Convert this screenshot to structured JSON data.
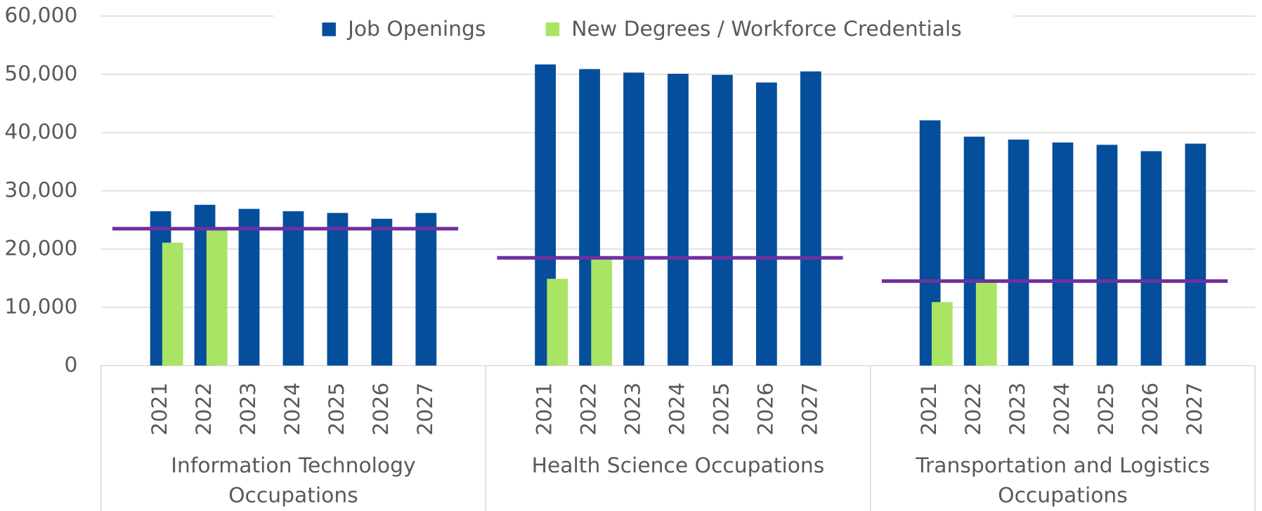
{
  "chart_data": {
    "type": "bar",
    "groups": [
      {
        "label": "Information Technology Occupations",
        "categories": [
          "2021",
          "2022",
          "2023",
          "2024",
          "2025",
          "2026",
          "2027"
        ]
      },
      {
        "label": "Health Science Occupations",
        "categories": [
          "2021",
          "2022",
          "2023",
          "2024",
          "2025",
          "2026",
          "2027"
        ]
      },
      {
        "label": "Transportation and Logistics Occupations",
        "categories": [
          "2021",
          "2022",
          "2023",
          "2024",
          "2025",
          "2026",
          "2027"
        ]
      }
    ],
    "series": [
      {
        "name": "Job Openings",
        "color": "#044e9c",
        "values": [
          26500,
          27600,
          26900,
          26500,
          26200,
          25200,
          26200,
          51700,
          50900,
          50300,
          50100,
          49900,
          48600,
          50500,
          42100,
          39300,
          38800,
          38300,
          37900,
          36800,
          38100
        ]
      },
      {
        "name": "New Degrees / Workforce Credentials",
        "color": "#a9e465",
        "values": [
          21100,
          23300,
          null,
          null,
          null,
          null,
          null,
          14900,
          18500,
          null,
          null,
          null,
          null,
          null,
          10900,
          14500,
          null,
          null,
          null,
          null,
          null
        ]
      }
    ],
    "reference_lines": {
      "color": "#7030a0",
      "values": [
        23500,
        18500,
        14500
      ]
    },
    "ylim": [
      0,
      60000
    ],
    "yticks": [
      0,
      {
        "value": 10000,
        "label": "10,000"
      },
      {
        "value": 20000,
        "label": "20,000"
      },
      {
        "value": 30000,
        "label": "30,000"
      },
      {
        "value": 40000,
        "label": "40,000"
      },
      {
        "value": 50000,
        "label": "50,000"
      },
      {
        "value": 60000,
        "label": "60,000"
      }
    ],
    "grid": true,
    "legend": "top"
  }
}
